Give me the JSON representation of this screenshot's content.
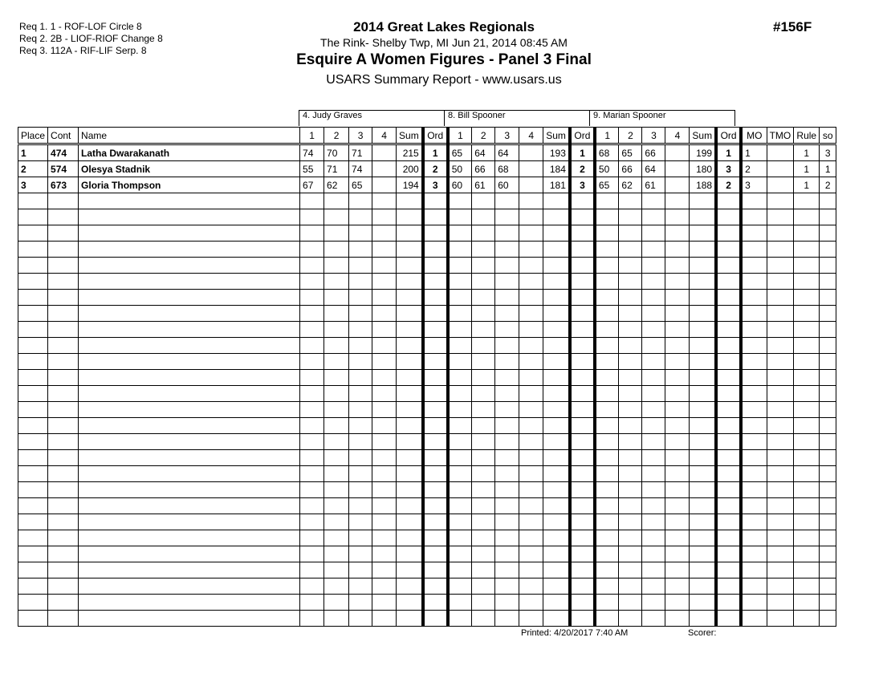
{
  "requirements": [
    "Req  1.  1 - ROF-LOF Circle 8",
    "Req  2.  2B - LIOF-RIOF Change 8",
    "Req  3.  112A - RIF-LIF Serp. 8"
  ],
  "header": {
    "title": "2014 Great Lakes Regionals",
    "venue": "The Rink- Shelby Twp, MI  Jun 21, 2014  08:45 AM",
    "event": "Esquire A Women Figures - Panel 3 Final",
    "report": "USARS Summary Report - www.usars.us",
    "event_no": "#156F"
  },
  "judges": [
    "4.  Judy Graves",
    "8.  Bill Spooner",
    "9.  Marian Spooner"
  ],
  "columns": [
    "Place",
    "Cont",
    "Name",
    "1",
    "2",
    "3",
    "4",
    "Sum",
    "Ord",
    "1",
    "2",
    "3",
    "4",
    "Sum",
    "Ord",
    "1",
    "2",
    "3",
    "4",
    "Sum",
    "Ord",
    "MO",
    "TMO",
    "Rule",
    "so"
  ],
  "rows": [
    [
      "1",
      "474",
      "Latha Dwarakanath",
      "74",
      "70",
      "71",
      "",
      "215",
      "1",
      "65",
      "64",
      "64",
      "",
      "193",
      "1",
      "68",
      "65",
      "66",
      "",
      "199",
      "1",
      "1",
      "",
      "1",
      "3"
    ],
    [
      "2",
      "574",
      "Olesya Stadnik",
      "55",
      "71",
      "74",
      "",
      "200",
      "2",
      "50",
      "66",
      "68",
      "",
      "184",
      "2",
      "50",
      "66",
      "64",
      "",
      "180",
      "3",
      "2",
      "",
      "1",
      "1"
    ],
    [
      "3",
      "673",
      "Gloria Thompson",
      "67",
      "62",
      "65",
      "",
      "194",
      "3",
      "60",
      "61",
      "60",
      "",
      "181",
      "3",
      "65",
      "62",
      "61",
      "",
      "188",
      "2",
      "3",
      "",
      "1",
      "2"
    ]
  ],
  "footer": {
    "printed": "Printed:  4/20/2017  7:40 AM",
    "scorer": "Scorer:"
  }
}
